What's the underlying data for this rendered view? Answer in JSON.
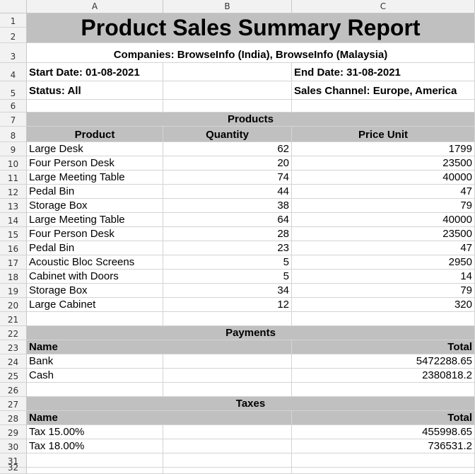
{
  "columns": [
    "A",
    "B",
    "C"
  ],
  "rows": [
    "1",
    "2",
    "3",
    "4",
    "5",
    "6",
    "7",
    "8",
    "9",
    "10",
    "11",
    "12",
    "13",
    "14",
    "15",
    "16",
    "17",
    "18",
    "19",
    "20",
    "21",
    "22",
    "23",
    "24",
    "25",
    "26",
    "27",
    "28",
    "29",
    "30",
    "31",
    "32"
  ],
  "title": "Product Sales Summary Report",
  "companies": "Companies: BrowseInfo (India), BrowseInfo (Malaysia)",
  "start_date": "Start Date: 01-08-2021",
  "end_date": "End Date: 31-08-2021",
  "status": "Status: All",
  "sales_channel": "Sales Channel: Europe, America",
  "products": {
    "section_title": "Products",
    "headers": [
      "Product",
      "Quantity",
      "Price Unit"
    ],
    "rows": [
      {
        "product": "Large Desk",
        "quantity": "62",
        "price": "1799"
      },
      {
        "product": "Four Person Desk",
        "quantity": "20",
        "price": "23500"
      },
      {
        "product": "Large Meeting Table",
        "quantity": "74",
        "price": "40000"
      },
      {
        "product": "Pedal Bin",
        "quantity": "44",
        "price": "47"
      },
      {
        "product": "Storage Box",
        "quantity": "38",
        "price": "79"
      },
      {
        "product": "Large Meeting Table",
        "quantity": "64",
        "price": "40000"
      },
      {
        "product": "Four Person Desk",
        "quantity": "28",
        "price": "23500"
      },
      {
        "product": "Pedal Bin",
        "quantity": "23",
        "price": "47"
      },
      {
        "product": "Acoustic Bloc Screens",
        "quantity": "5",
        "price": "2950"
      },
      {
        "product": "Cabinet with Doors",
        "quantity": "5",
        "price": "14"
      },
      {
        "product": "Storage Box",
        "quantity": "34",
        "price": "79"
      },
      {
        "product": "Large Cabinet",
        "quantity": "12",
        "price": "320"
      }
    ]
  },
  "payments": {
    "section_title": "Payments",
    "headers": [
      "Name",
      "Total"
    ],
    "rows": [
      {
        "name": "Bank",
        "total": "5472288.65"
      },
      {
        "name": "Cash",
        "total": "2380818.2"
      }
    ]
  },
  "taxes": {
    "section_title": "Taxes",
    "headers": [
      "Name",
      "Total"
    ],
    "rows": [
      {
        "name": "Tax 15.00%",
        "total": "455998.65"
      },
      {
        "name": "Tax 18.00%",
        "total": "736531.2"
      }
    ]
  },
  "colors": {
    "header_gray": "#c0c0c0",
    "grid": "#d4d4d4",
    "chrome": "#f2f2f2"
  }
}
